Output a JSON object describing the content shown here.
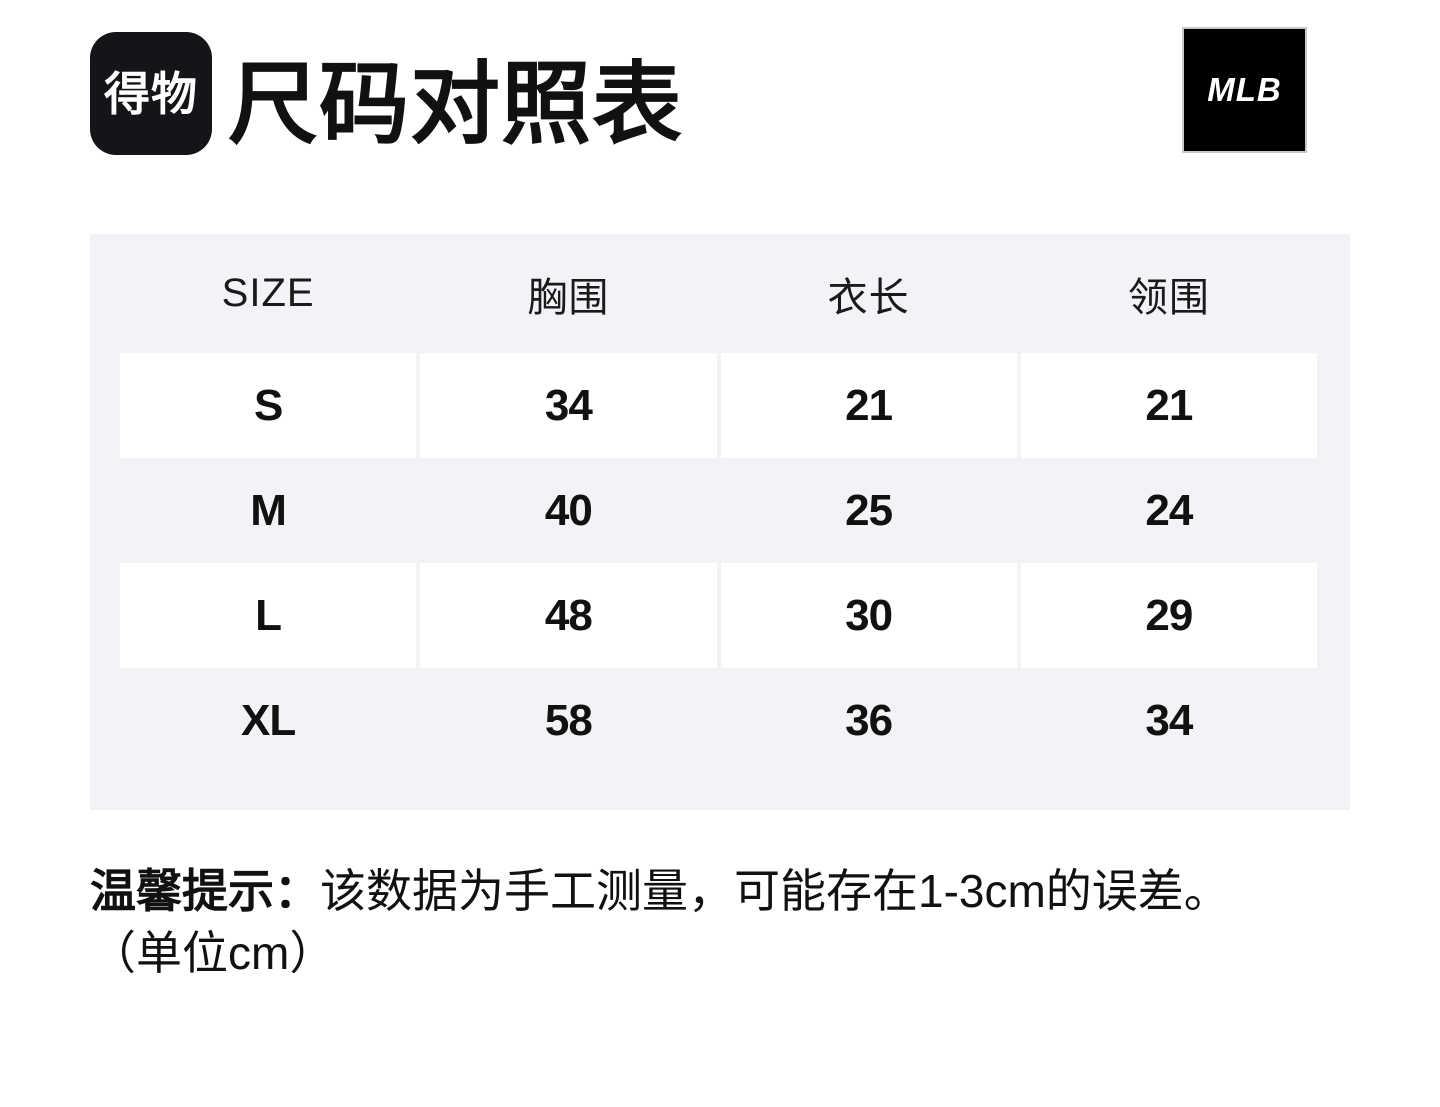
{
  "header": {
    "title": "尺码对照表",
    "dewu_logo_text": "得物",
    "brand_logo_text": "MLB"
  },
  "table": {
    "headers": [
      "SIZE",
      "胸围",
      "衣长",
      "领围"
    ],
    "rows": [
      {
        "size": "S",
        "values": [
          "34",
          "21",
          "21"
        ]
      },
      {
        "size": "M",
        "values": [
          "40",
          "25",
          "24"
        ]
      },
      {
        "size": "L",
        "values": [
          "48",
          "30",
          "29"
        ]
      },
      {
        "size": "XL",
        "values": [
          "58",
          "36",
          "34"
        ]
      }
    ]
  },
  "note": {
    "label": "温馨提示：",
    "text": "该数据为手工测量，可能存在1-3cm的误差。",
    "unit": "（单位cm）"
  },
  "colors": {
    "card_background": "#f2f2f7",
    "cell_background": "#ffffff",
    "dewu_logo_background": "#141419",
    "mlb_logo_background": "#000000",
    "text": "#111111"
  }
}
